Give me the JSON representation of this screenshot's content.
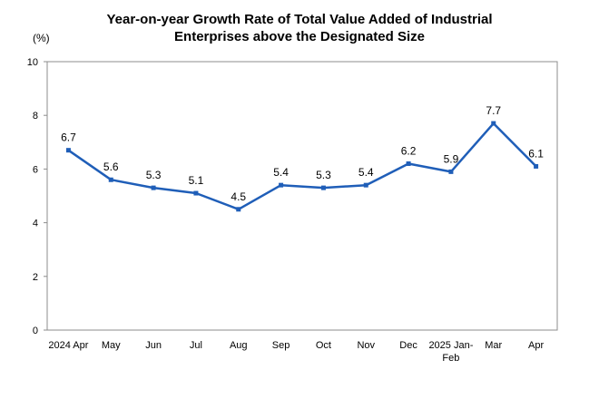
{
  "chart_data": {
    "type": "line",
    "title_lines": [
      "Year-on-year Growth Rate of Total Value Added of Industrial",
      "Enterprises above the Designated Size"
    ],
    "y_unit": "(%)",
    "categories": [
      [
        "2024 Apr"
      ],
      [
        "May"
      ],
      [
        "Jun"
      ],
      [
        "Jul"
      ],
      [
        "Aug"
      ],
      [
        "Sep"
      ],
      [
        "Oct"
      ],
      [
        "Nov"
      ],
      [
        "Dec"
      ],
      [
        "2025 Jan-",
        "Feb"
      ],
      [
        "Mar"
      ],
      [
        "Apr"
      ]
    ],
    "series": [
      {
        "values": [
          6.7,
          5.6,
          5.3,
          5.1,
          4.5,
          5.4,
          5.3,
          5.4,
          6.2,
          5.9,
          7.7,
          6.1
        ],
        "labels": [
          "6.7",
          "5.6",
          "5.3",
          "5.1",
          "4.5",
          "5.4",
          "5.3",
          "5.4",
          "6.2",
          "5.9",
          "7.7",
          "6.1"
        ],
        "color": "#1f5eb8"
      }
    ],
    "ylim": [
      0,
      10
    ],
    "yticks": [
      0,
      2,
      4,
      6,
      8,
      10
    ],
    "grid": false,
    "legend": "none"
  }
}
